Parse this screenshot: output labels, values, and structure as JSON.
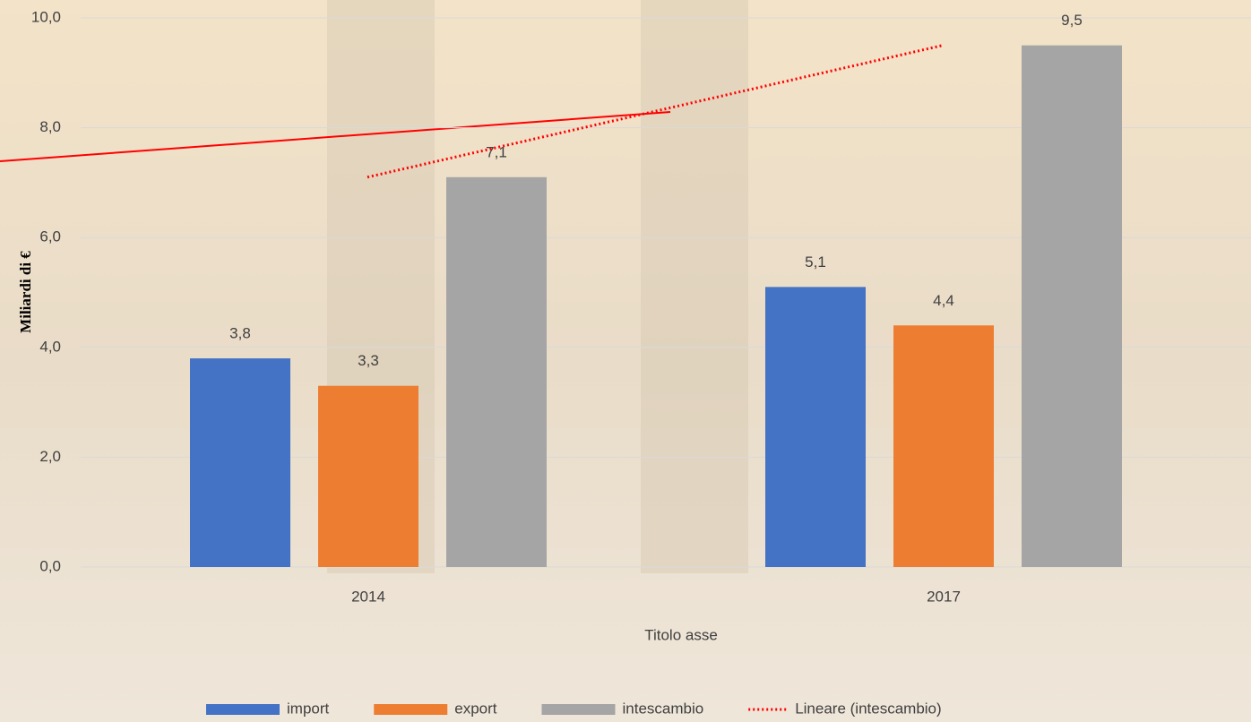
{
  "chart_data": {
    "type": "bar",
    "y_axis_label": "Miliardi  di €",
    "x_axis_label": "Titolo asse",
    "categories": [
      "2014",
      "2017"
    ],
    "series": [
      {
        "name": "import",
        "color": "#4472c4",
        "values": [
          3.8,
          5.1
        ],
        "value_labels": [
          "3,8",
          "5,1"
        ]
      },
      {
        "name": "export",
        "color": "#ed7d31",
        "values": [
          3.3,
          4.4
        ],
        "value_labels": [
          "3,3",
          "4,4"
        ]
      },
      {
        "name": "intescambio",
        "color": "#a5a5a5",
        "values": [
          7.1,
          9.5
        ],
        "value_labels": [
          "7,1",
          "9,5"
        ]
      }
    ],
    "trendline": {
      "name": "Lineare (intescambio)",
      "color": "#ff0000",
      "of_series": 2
    },
    "ylim": [
      0,
      10
    ],
    "yticks": [
      {
        "value": 0,
        "label": "0,0"
      },
      {
        "value": 2,
        "label": "2,0"
      },
      {
        "value": 4,
        "label": "4,0"
      },
      {
        "value": 6,
        "label": "6,0"
      },
      {
        "value": 8,
        "label": "8,0"
      },
      {
        "value": 10,
        "label": "10,0"
      }
    ],
    "grid": true,
    "legend": "bottom"
  }
}
